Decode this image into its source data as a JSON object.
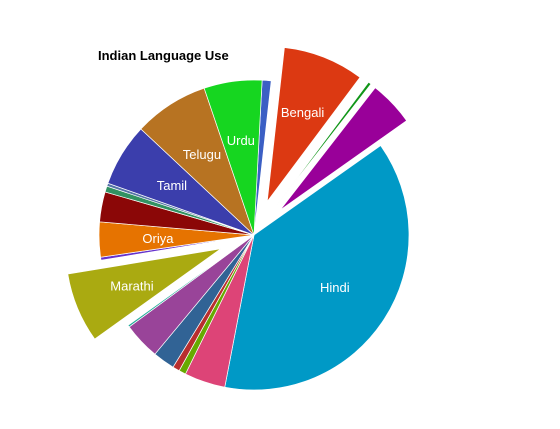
{
  "chart_data": {
    "type": "pie",
    "title": "Indian Language Use",
    "unit": "percent",
    "slices": [
      {
        "label": "",
        "value": 0.9,
        "color": "#3b5fc4",
        "exploded": false
      },
      {
        "label": "Bengali",
        "value": 8.1,
        "color": "#dc3912",
        "exploded": true
      },
      {
        "label": "",
        "value": 0.3,
        "color": "#109618",
        "exploded": true
      },
      {
        "label": "",
        "value": 4.5,
        "color": "#990099",
        "exploded": true
      },
      {
        "label": "Hindi",
        "value": 36.3,
        "color": "#0099c6",
        "exploded": false
      },
      {
        "label": "",
        "value": 4.1,
        "color": "#dd4477",
        "exploded": false
      },
      {
        "label": "",
        "value": 0.7,
        "color": "#66aa00",
        "exploded": false
      },
      {
        "label": "",
        "value": 0.7,
        "color": "#b82e2e",
        "exploded": false
      },
      {
        "label": "",
        "value": 2.2,
        "color": "#316395",
        "exploded": false
      },
      {
        "label": "",
        "value": 3.7,
        "color": "#994499",
        "exploded": false
      },
      {
        "label": "",
        "value": 0.2,
        "color": "#22aa99",
        "exploded": false
      },
      {
        "label": "Marathi",
        "value": 7.0,
        "color": "#aaaa11",
        "exploded": true
      },
      {
        "label": "",
        "value": 0.3,
        "color": "#6633cc",
        "exploded": false
      },
      {
        "label": "Oriya",
        "value": 3.5,
        "color": "#e67300",
        "exploded": false
      },
      {
        "label": "",
        "value": 3.0,
        "color": "#8b0707",
        "exploded": false
      },
      {
        "label": "",
        "value": 0.6,
        "color": "#329262",
        "exploded": false
      },
      {
        "label": "",
        "value": 0.3,
        "color": "#5574a6",
        "exploded": false
      },
      {
        "label": "Tamil",
        "value": 6.3,
        "color": "#3b3eac",
        "exploded": false
      },
      {
        "label": "Telugu",
        "value": 7.5,
        "color": "#b77322",
        "exploded": false
      },
      {
        "label": "Urdu",
        "value": 5.8,
        "color": "#16d620",
        "exploded": false
      }
    ]
  }
}
